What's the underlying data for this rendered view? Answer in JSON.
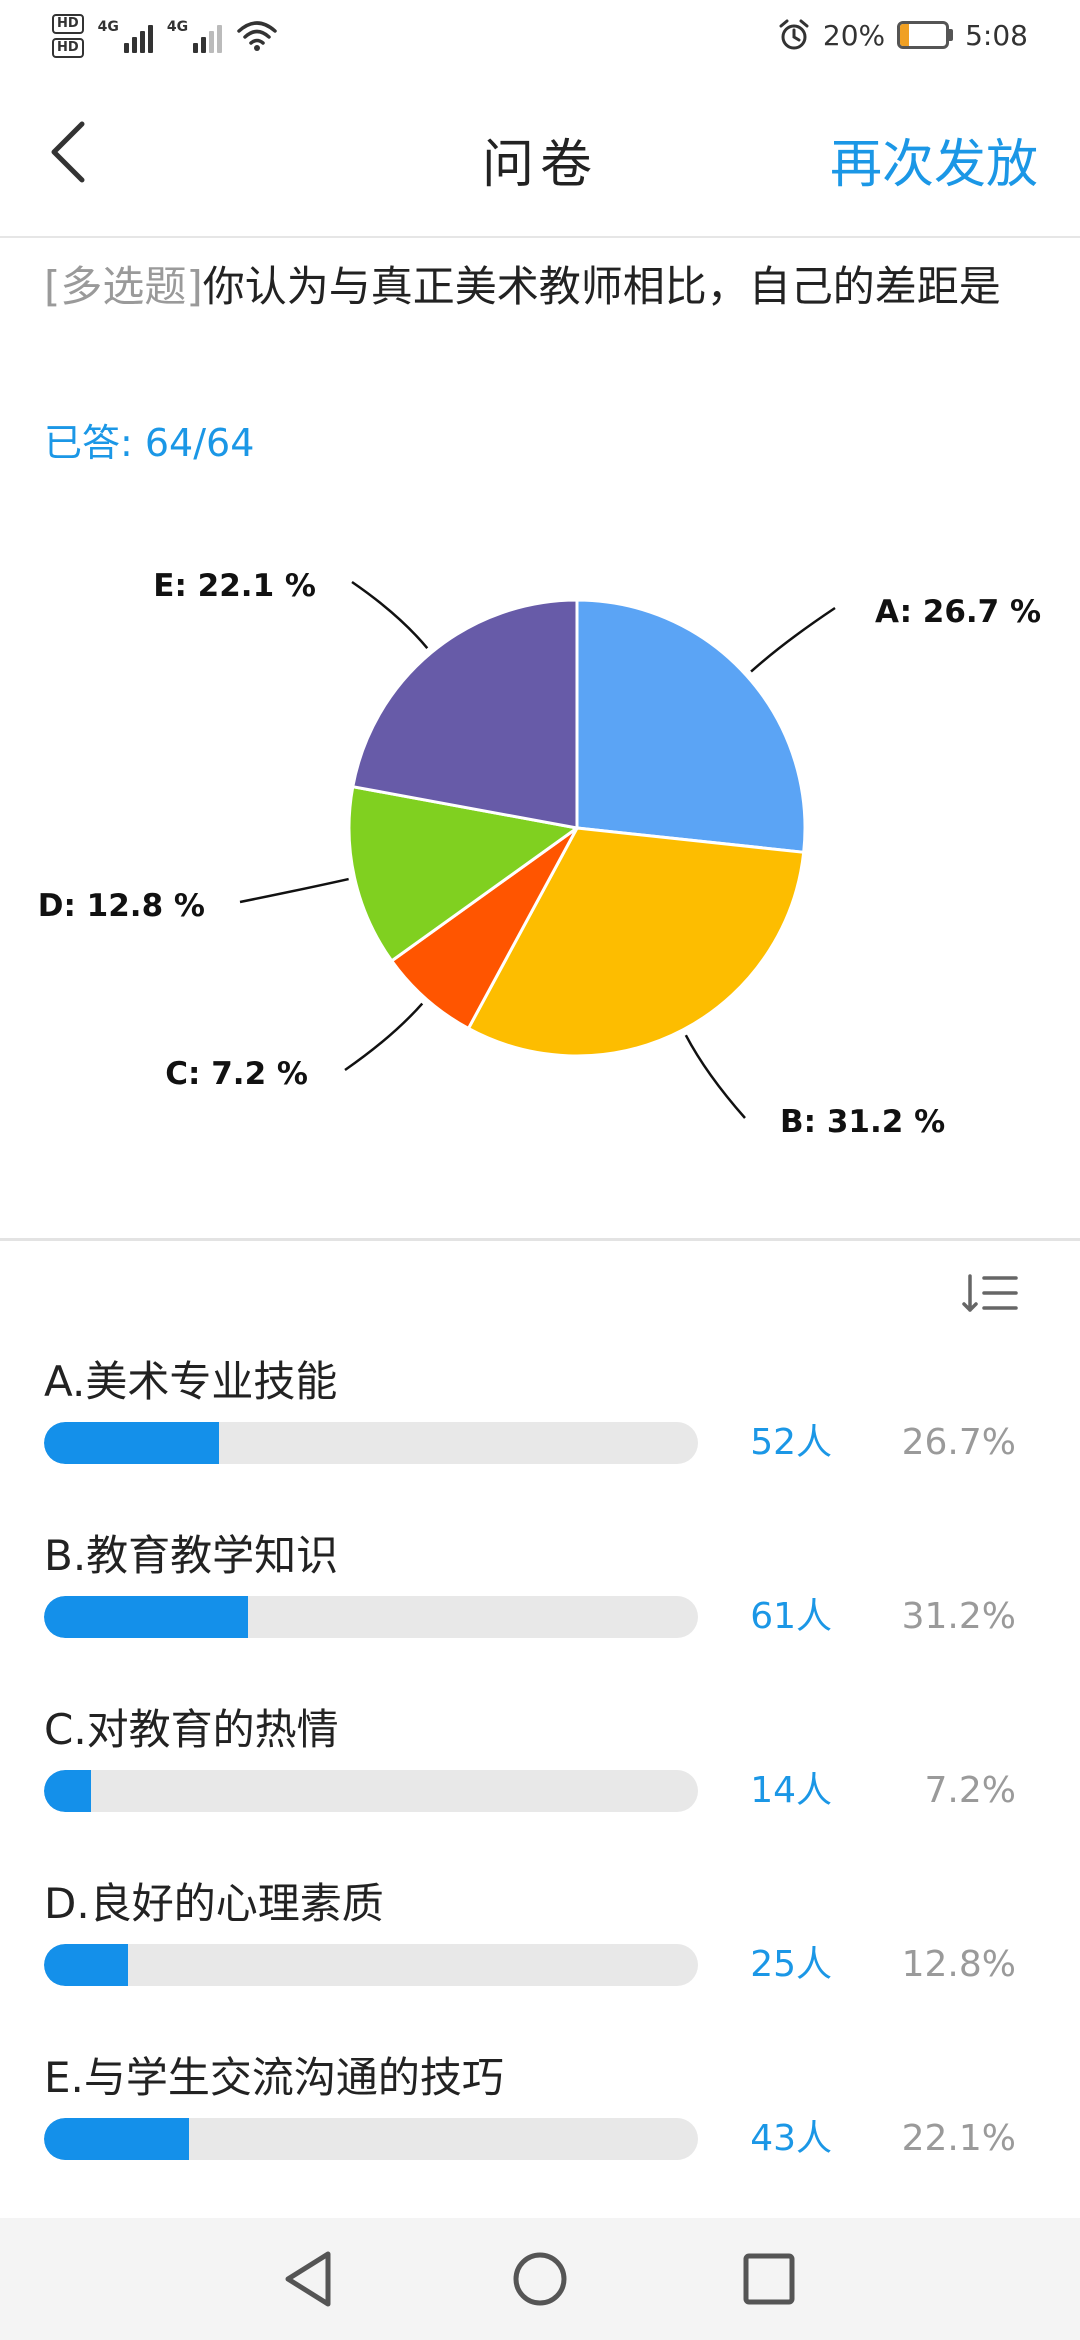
{
  "status_bar": {
    "hd1": "HD",
    "hd2": "HD",
    "sig1_tag": "4G",
    "sig2_tag": "4G",
    "battery_pct": "20%",
    "battery_level": 0.2,
    "time": "5:08",
    "icons": [
      "alarm-icon",
      "wifi-icon",
      "battery-icon"
    ]
  },
  "header": {
    "title": "问卷",
    "action_label": "再次发放"
  },
  "question": {
    "type_tag": "[多选题]",
    "text": "你认为与真正美术教师相比，自己的差距是",
    "answered": "已答: 64/64"
  },
  "chart_data": {
    "type": "pie",
    "slices": [
      {
        "name": "A",
        "value": 26.7,
        "label": "A: 26.7 %",
        "color": "#5ba4f5"
      },
      {
        "name": "B",
        "value": 31.2,
        "label": "B: 31.2 %",
        "color": "#fdbd00"
      },
      {
        "name": "C",
        "value": 7.2,
        "label": "C: 7.2 %",
        "color": "#ff5500"
      },
      {
        "name": "D",
        "value": 12.8,
        "label": "D: 12.8 %",
        "color": "#80d020"
      },
      {
        "name": "E",
        "value": 22.1,
        "label": "E: 22.1 %",
        "color": "#675ba8"
      }
    ]
  },
  "options": [
    {
      "label": "A.美术专业技能",
      "count": "52人",
      "percent": "26.7%",
      "fraction": 0.267
    },
    {
      "label": "B.教育教学知识",
      "count": "61人",
      "percent": "31.2%",
      "fraction": 0.312
    },
    {
      "label": "C.对教育的热情",
      "count": "14人",
      "percent": "7.2%",
      "fraction": 0.072
    },
    {
      "label": "D.良好的心理素质",
      "count": "25人",
      "percent": "12.8%",
      "fraction": 0.128
    },
    {
      "label": "E.与学生交流沟通的技巧",
      "count": "43人",
      "percent": "22.1%",
      "fraction": 0.221
    }
  ],
  "colors": {
    "accent": "#1b97e6",
    "bar_fill": "#1490ea",
    "bar_track": "#e8e8e8"
  }
}
